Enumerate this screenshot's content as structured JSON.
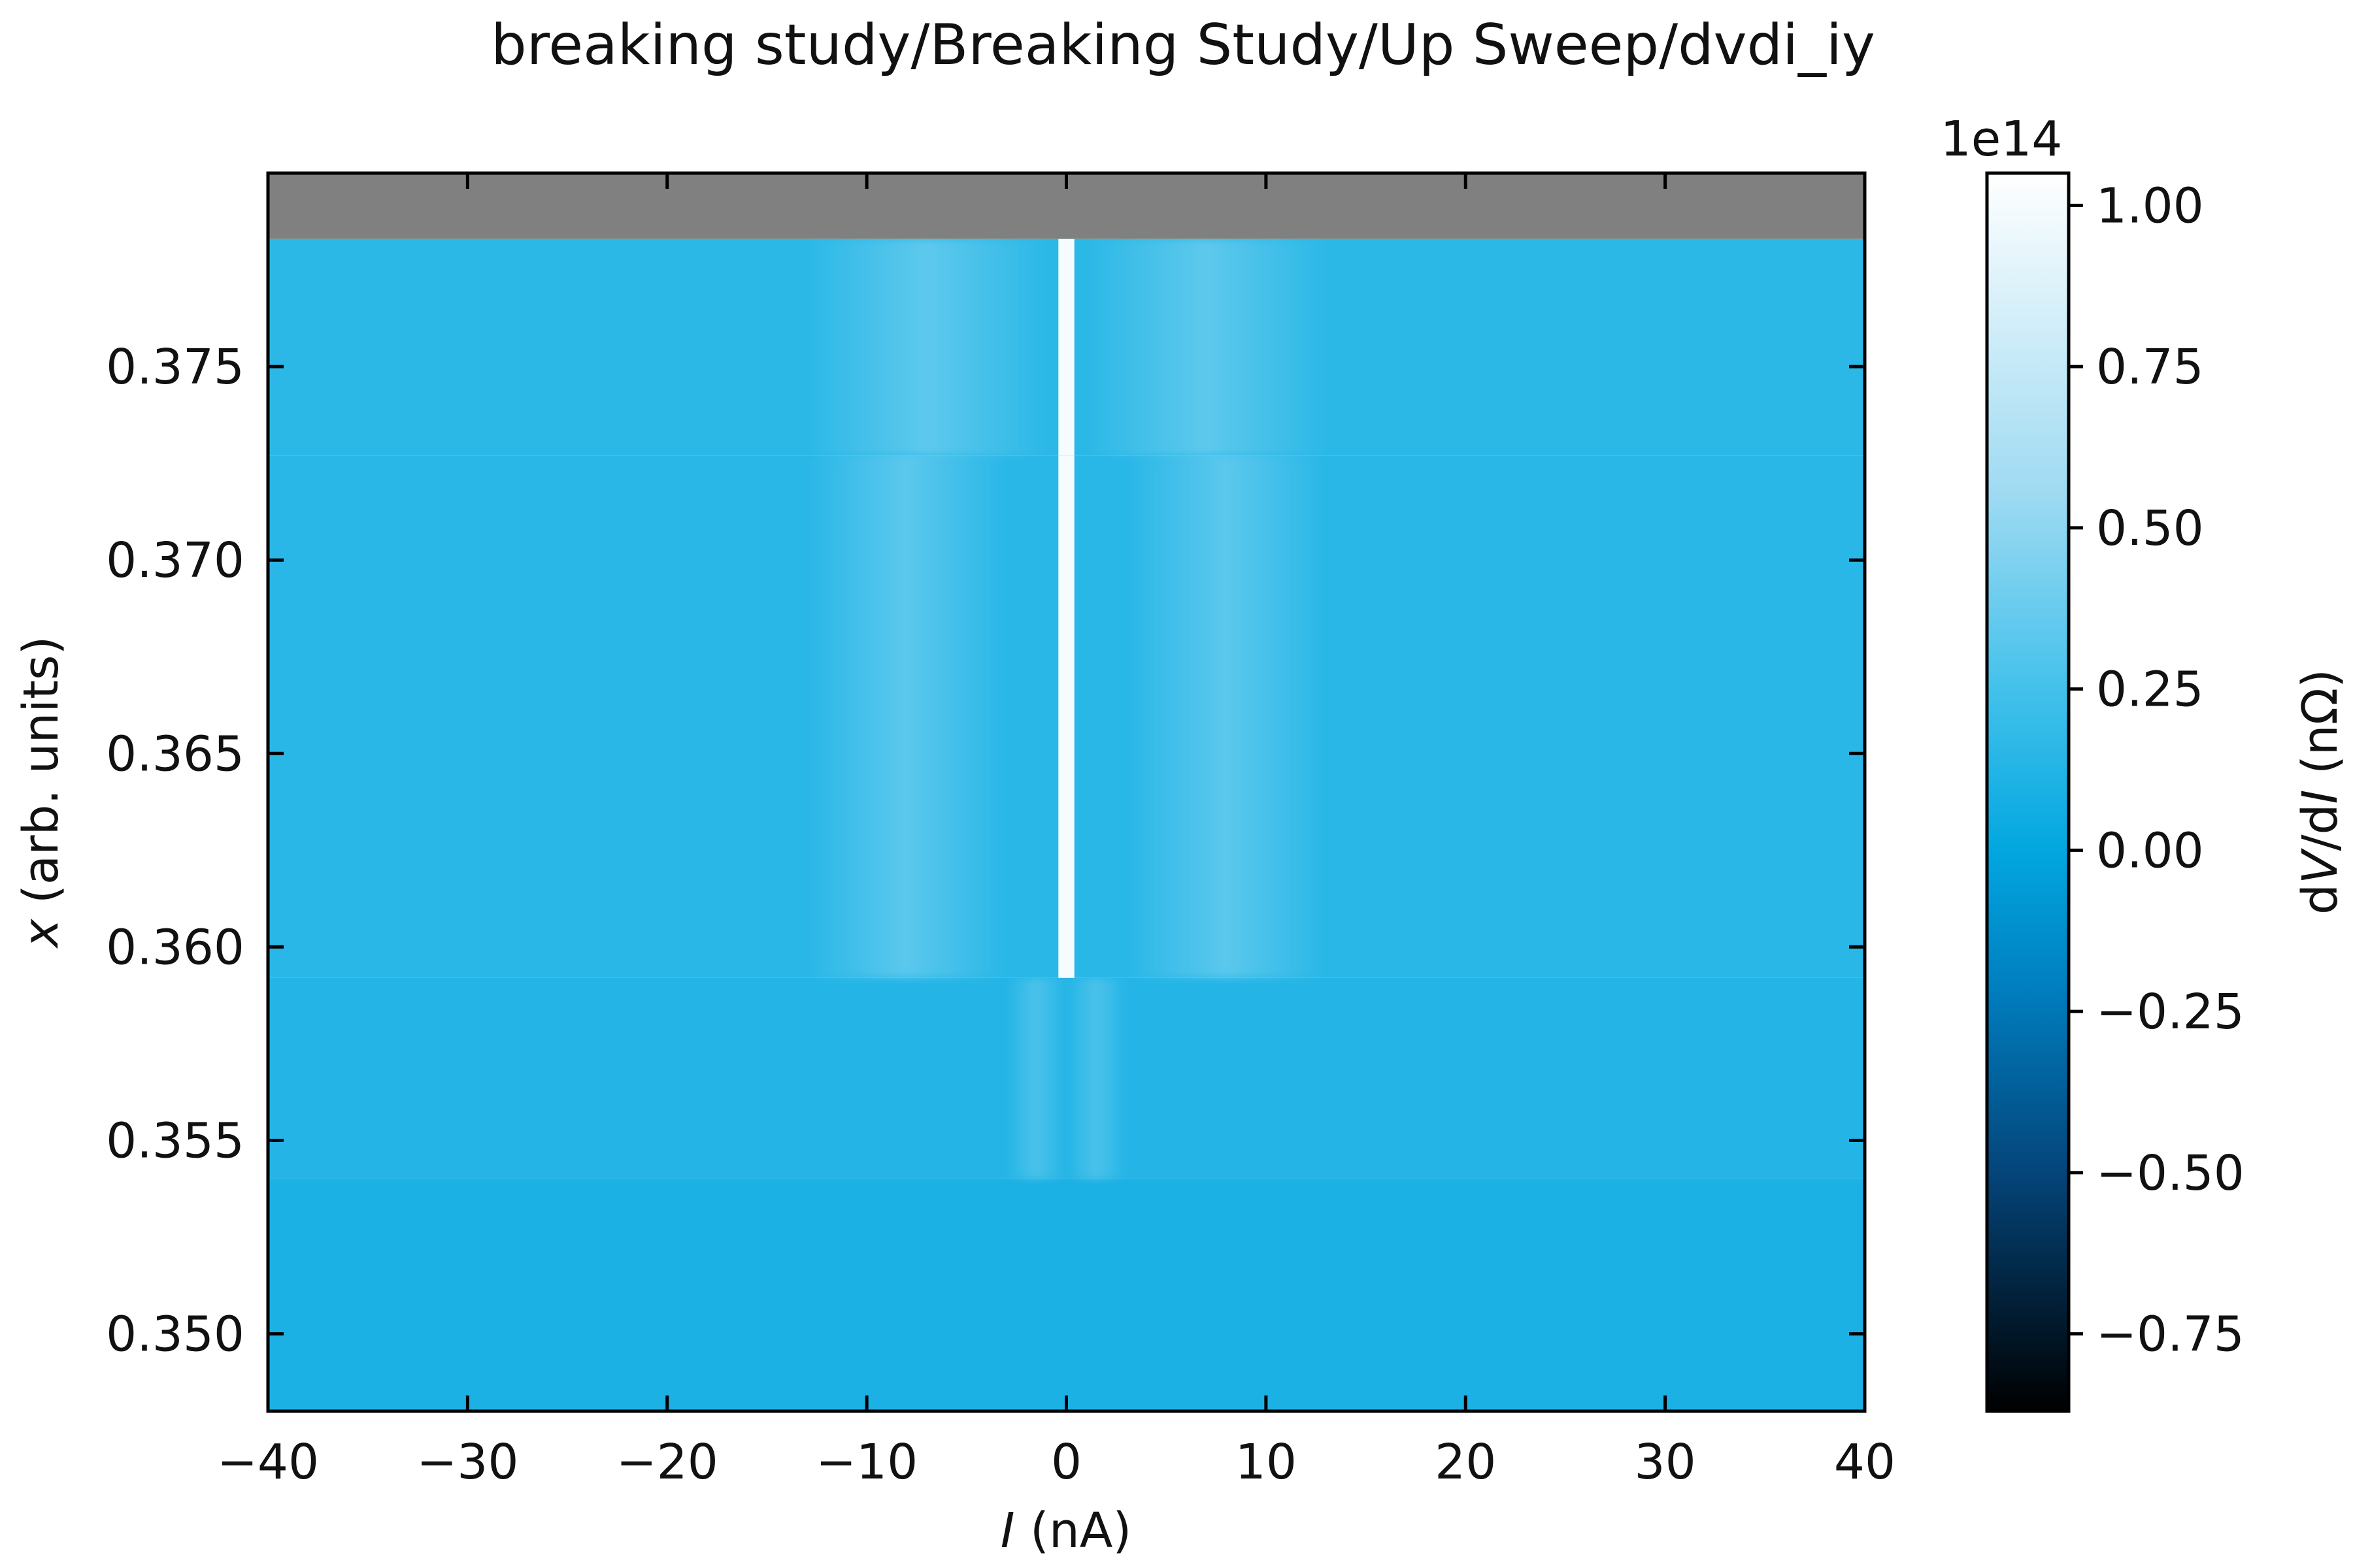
{
  "chart_data": {
    "type": "heatmap",
    "title": "breaking study/Breaking Study/Up Sweep/dvdi_iy",
    "xlabel": {
      "symbol": "I",
      "rest": " (nA)"
    },
    "ylabel": {
      "symbol": "x",
      "rest": " (arb. units)"
    },
    "xlim": [
      -40,
      40
    ],
    "ylim": [
      0.348,
      0.38
    ],
    "xticks": [
      -40,
      -30,
      -20,
      -10,
      0,
      10,
      20,
      30,
      40
    ],
    "xtick_labels": [
      "−40",
      "−30",
      "−20",
      "−10",
      "0",
      "10",
      "20",
      "30",
      "40"
    ],
    "yticks": [
      0.35,
      0.355,
      0.36,
      0.365,
      0.37,
      0.375
    ],
    "ytick_labels": [
      "0.350",
      "0.355",
      "0.360",
      "0.365",
      "0.370",
      "0.375"
    ],
    "grid": false,
    "missing_data_color": "#808080",
    "missing_data_region": {
      "x_range": [
        -40,
        40
      ],
      "y_range": [
        0.3783,
        0.38
      ]
    },
    "colorbar": {
      "label": {
        "prefix": "d",
        "v": "V",
        "mid": "/d",
        "i": "I",
        "rest": " (nΩ)"
      },
      "offset_text": "1e14",
      "range": [
        -0.87,
        1.05
      ],
      "ticks": [
        -0.75,
        -0.5,
        -0.25,
        0.0,
        0.25,
        0.5,
        0.75,
        1.0
      ],
      "tick_labels": [
        "−0.75",
        "−0.50",
        "−0.25",
        "0.00",
        "0.25",
        "0.50",
        "0.75",
        "1.00"
      ],
      "colormap_stops": [
        {
          "value": -0.87,
          "color": "#000000"
        },
        {
          "value": -0.5,
          "color": "#04457a"
        },
        {
          "value": -0.2,
          "color": "#0081c2"
        },
        {
          "value": 0.0,
          "color": "#02a7e0"
        },
        {
          "value": 0.25,
          "color": "#43c1eb"
        },
        {
          "value": 0.55,
          "color": "#9ddaf2"
        },
        {
          "value": 1.05,
          "color": "#ffffff"
        }
      ]
    },
    "segments": [
      {
        "y_range": [
          0.348,
          0.354
        ],
        "base_value": 0.1,
        "bands": []
      },
      {
        "y_range": [
          0.354,
          0.3592
        ],
        "base_value": 0.13,
        "bands": [
          {
            "x_center": -1.5,
            "x_width": 3.0,
            "value": 0.2
          },
          {
            "x_center": 1.5,
            "x_width": 3.0,
            "value": 0.2
          }
        ]
      },
      {
        "y_range": [
          0.3592,
          0.3727
        ],
        "base_value": 0.15,
        "bands": [
          {
            "x_center": -8.0,
            "x_width": 10.0,
            "value": 0.24
          },
          {
            "x_center": 8.0,
            "x_width": 10.0,
            "value": 0.24
          },
          {
            "x_center": 0.0,
            "x_width": 0.8,
            "value": 1.0
          }
        ]
      },
      {
        "y_range": [
          0.3727,
          0.3783
        ],
        "base_value": 0.16,
        "bands": [
          {
            "x_center": -7.0,
            "x_width": 12.0,
            "value": 0.25
          },
          {
            "x_center": 7.0,
            "x_width": 12.0,
            "value": 0.25
          },
          {
            "x_center": 0.0,
            "x_width": 0.8,
            "value": 1.0
          }
        ]
      }
    ]
  }
}
